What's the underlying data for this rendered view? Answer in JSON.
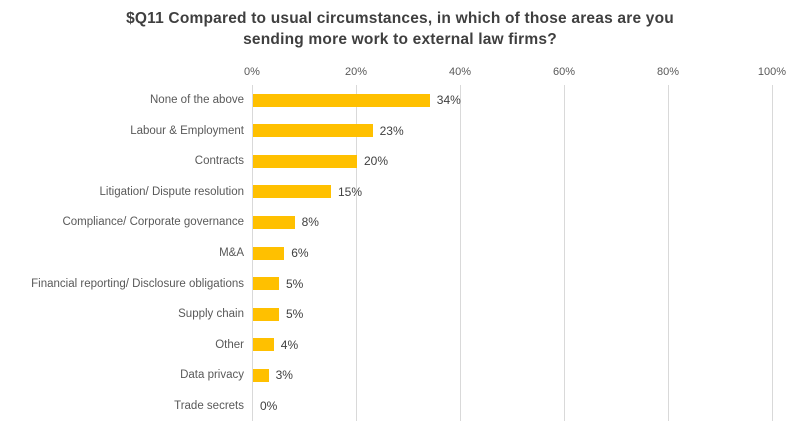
{
  "title": {
    "lines": [
      "$Q11 Compared to usual circumstances, in which of those areas are you",
      "sending more work to external law firms?"
    ]
  },
  "chart_data": {
    "type": "bar",
    "orientation": "horizontal",
    "title": "$Q11 Compared to usual circumstances, in which of those areas are you sending more work to external law firms?",
    "categories": [
      "None of the above",
      "Labour & Employment",
      "Contracts",
      "Litigation/ Dispute resolution",
      "Compliance/ Corporate governance",
      "M&A",
      "Financial reporting/ Disclosure obligations",
      "Supply chain",
      "Other",
      "Data privacy",
      "Trade secrets"
    ],
    "values": [
      34,
      23,
      20,
      15,
      8,
      6,
      5,
      5,
      4,
      3,
      0
    ],
    "value_labels": [
      "34%",
      "23%",
      "20%",
      "15%",
      "8%",
      "6%",
      "5%",
      "5%",
      "4%",
      "3%",
      "0%"
    ],
    "x_tick_labels": [
      "0%",
      "20%",
      "40%",
      "60%",
      "80%",
      "100%"
    ],
    "x_tick_values": [
      0,
      20,
      40,
      60,
      80,
      100
    ],
    "xlim": [
      0,
      100
    ],
    "xlabel": "",
    "ylabel": "",
    "legend": "none",
    "grid": "vertical-gridlines",
    "bar_color": "#FFC000",
    "gridline_color": "#D9D9D9"
  },
  "colors": {
    "background": "#FFFFFF",
    "title_text": "#3F3F3F",
    "category_text": "#595959",
    "tick_text": "#595959",
    "value_text": "#404040"
  }
}
